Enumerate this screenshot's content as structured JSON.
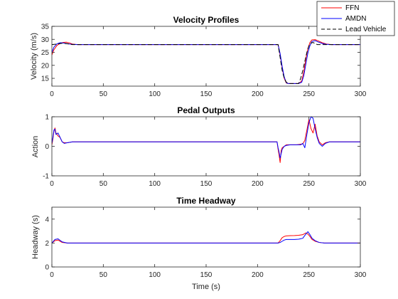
{
  "colors": {
    "ffn": "#ff0000",
    "amdn": "#0000ff",
    "lead": "#000000",
    "axis": "#262626",
    "background": "#ffffff"
  },
  "legend": {
    "placement": "top-right",
    "entries": [
      "FFN",
      "AMDN",
      "Lead Vehicle"
    ]
  },
  "chart_data": [
    {
      "type": "line",
      "title": "Velocity Profiles",
      "xlabel": "",
      "ylabel": "Velocity (m/s)",
      "xlim": [
        0,
        300
      ],
      "ylim": [
        12,
        35
      ],
      "xticks": [
        "0",
        "50",
        "100",
        "150",
        "200",
        "250",
        "300"
      ],
      "yticks": [
        "15",
        "20",
        "25",
        "30",
        "35"
      ],
      "grid": false,
      "series": [
        {
          "name": "FFN",
          "color": "#ff0000",
          "dash": "solid",
          "x": [
            0,
            2,
            5,
            8,
            11,
            14,
            17,
            20,
            25,
            100,
            200,
            220,
            222,
            224,
            226,
            228,
            230,
            235,
            240,
            243,
            245,
            247,
            249,
            251,
            253,
            256,
            259,
            263,
            267,
            272,
            280,
            300
          ],
          "y": [
            24,
            26,
            27.7,
            28.4,
            28.8,
            28.9,
            28.6,
            28.2,
            28,
            28,
            28,
            28,
            24,
            19,
            15,
            13.2,
            13,
            13,
            13,
            14,
            17.5,
            22.5,
            26.5,
            28.8,
            29.8,
            29.9,
            29.4,
            28.7,
            28.2,
            28,
            28,
            28
          ]
        },
        {
          "name": "AMDN",
          "color": "#0000ff",
          "dash": "solid",
          "x": [
            0,
            2,
            5,
            8,
            11,
            14,
            17,
            20,
            25,
            100,
            200,
            220,
            222,
            224,
            226,
            228,
            230,
            235,
            240,
            243,
            245,
            247,
            249,
            251,
            253,
            256,
            259,
            263,
            267,
            272,
            280,
            300
          ],
          "y": [
            25,
            27,
            28.3,
            28.7,
            28.6,
            28.4,
            28.2,
            28.1,
            28,
            28,
            28,
            28,
            24.5,
            19.5,
            15.5,
            13.3,
            13,
            13,
            13,
            13.5,
            16,
            20.5,
            24.8,
            27.6,
            29.2,
            29.5,
            29,
            28.4,
            28.1,
            28,
            28,
            28
          ]
        },
        {
          "name": "Lead Vehicle",
          "color": "#000000",
          "dash": "dashed",
          "x": [
            0,
            5,
            10,
            15,
            20,
            100,
            200,
            220,
            222,
            224,
            226,
            228,
            230,
            240,
            242,
            244,
            246,
            248,
            250,
            252,
            254,
            256,
            258,
            300
          ],
          "y": [
            28,
            28.2,
            28.5,
            28.3,
            28,
            28,
            28,
            28,
            23,
            18,
            15,
            13.5,
            13,
            13,
            15,
            18,
            21.5,
            25,
            27.5,
            28.6,
            28.8,
            28.4,
            28,
            28
          ]
        }
      ]
    },
    {
      "type": "line",
      "title": "Pedal Outputs",
      "xlabel": "",
      "ylabel": "Action",
      "xlim": [
        0,
        300
      ],
      "ylim": [
        -1,
        1
      ],
      "xticks": [
        "0",
        "50",
        "100",
        "150",
        "200",
        "250",
        "300"
      ],
      "yticks": [
        "-1",
        "0",
        "1"
      ],
      "grid": false,
      "series": [
        {
          "name": "FFN",
          "color": "#ff0000",
          "dash": "solid",
          "x": [
            0,
            1,
            2,
            3,
            4,
            6,
            8,
            10,
            12,
            15,
            20,
            100,
            200,
            219,
            220,
            221,
            222,
            223,
            224,
            226,
            228,
            232,
            238,
            244,
            246,
            248,
            250,
            252,
            254,
            256,
            258,
            260,
            263,
            266,
            270,
            280,
            300
          ],
          "y": [
            0.05,
            0.25,
            0.5,
            0.62,
            0.45,
            0.35,
            0.3,
            0.15,
            0.12,
            0.12,
            0.15,
            0.15,
            0.15,
            0.15,
            -0.1,
            -0.3,
            -0.55,
            -0.15,
            -0.05,
            0,
            0.05,
            0.05,
            0.05,
            0.08,
            0.2,
            0.55,
            0.9,
            0.6,
            0.45,
            0.75,
            0.35,
            0.15,
            0.05,
            0.12,
            0.15,
            0.15,
            0.15
          ]
        },
        {
          "name": "AMDN",
          "color": "#0000ff",
          "dash": "solid",
          "x": [
            0,
            1,
            2,
            3,
            4,
            6,
            8,
            10,
            12,
            15,
            20,
            100,
            200,
            219,
            220,
            221,
            222,
            223,
            224,
            226,
            228,
            232,
            238,
            242,
            244,
            246,
            248,
            250,
            252,
            254,
            256,
            258,
            260,
            263,
            266,
            270,
            280,
            300
          ],
          "y": [
            0.1,
            0.3,
            0.55,
            0.58,
            0.4,
            0.45,
            0.3,
            0.15,
            0.1,
            0.12,
            0.15,
            0.15,
            0.15,
            0.15,
            -0.05,
            -0.2,
            -0.4,
            -0.25,
            -0.1,
            0,
            0.03,
            0.05,
            0.05,
            0.05,
            0.1,
            -0.05,
            0.4,
            0.8,
            1,
            0.95,
            0.6,
            0.3,
            0.1,
            0.0,
            0.1,
            0.15,
            0.15,
            0.15
          ]
        }
      ]
    },
    {
      "type": "line",
      "title": "Time Headway",
      "xlabel": "Time (s)",
      "ylabel": "Headway (s)",
      "xlim": [
        0,
        300
      ],
      "ylim": [
        0,
        5
      ],
      "xticks": [
        "0",
        "50",
        "100",
        "150",
        "200",
        "250",
        "300"
      ],
      "yticks": [
        "0",
        "2",
        "4"
      ],
      "grid": false,
      "series": [
        {
          "name": "FFN",
          "color": "#ff0000",
          "dash": "solid",
          "x": [
            0,
            3,
            6,
            10,
            15,
            20,
            100,
            200,
            220,
            222,
            224,
            226,
            228,
            232,
            236,
            240,
            244,
            247,
            249,
            251,
            253,
            256,
            260,
            265,
            270,
            280,
            300
          ],
          "y": [
            2.0,
            2.2,
            2.25,
            2.05,
            2.0,
            2.0,
            2.0,
            2.0,
            2.0,
            2.2,
            2.45,
            2.55,
            2.6,
            2.62,
            2.63,
            2.65,
            2.7,
            2.85,
            2.75,
            2.55,
            2.3,
            2.15,
            2.05,
            2.0,
            2.0,
            2.0,
            2.0
          ]
        },
        {
          "name": "AMDN",
          "color": "#0000ff",
          "dash": "solid",
          "x": [
            0,
            3,
            6,
            10,
            15,
            20,
            100,
            200,
            220,
            222,
            224,
            226,
            228,
            232,
            236,
            240,
            244,
            247,
            249,
            251,
            253,
            256,
            260,
            265,
            270,
            280,
            300
          ],
          "y": [
            2.0,
            2.3,
            2.35,
            2.1,
            2.0,
            2.0,
            2.0,
            2.0,
            2.0,
            2.05,
            2.15,
            2.25,
            2.3,
            2.3,
            2.3,
            2.32,
            2.4,
            2.75,
            2.95,
            2.7,
            2.4,
            2.2,
            2.05,
            2.0,
            2.0,
            2.0,
            2.0
          ]
        }
      ]
    }
  ]
}
